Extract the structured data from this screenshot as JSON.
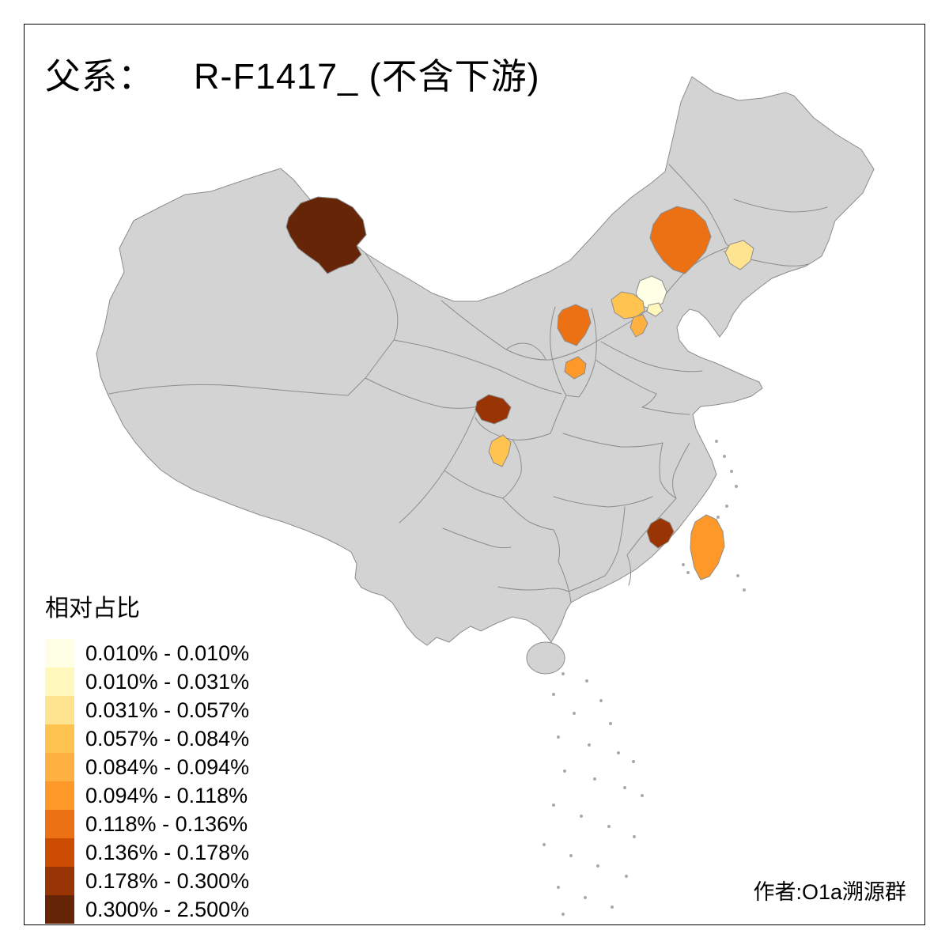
{
  "title": {
    "prefix": "父系：",
    "name": "R-F1417_ (不含下游)"
  },
  "legend": {
    "title": "相对占比",
    "items": [
      {
        "label": "0.010% - 0.010%",
        "color": "#FFFFE5"
      },
      {
        "label": "0.010% - 0.031%",
        "color": "#FFF7BC"
      },
      {
        "label": "0.031% - 0.057%",
        "color": "#FEE391"
      },
      {
        "label": "0.057% - 0.084%",
        "color": "#FEC44F"
      },
      {
        "label": "0.084% - 0.094%",
        "color": "#FEB140"
      },
      {
        "label": "0.094% - 0.118%",
        "color": "#FE9929"
      },
      {
        "label": "0.118% - 0.136%",
        "color": "#EC7014"
      },
      {
        "label": "0.136% - 0.178%",
        "color": "#CC4C02"
      },
      {
        "label": "0.178% - 0.300%",
        "color": "#993404"
      },
      {
        "label": "0.300% - 2.500%",
        "color": "#662506"
      }
    ]
  },
  "credit": "作者:O1a溯源群",
  "map": {
    "background": "#FFFFFF",
    "land_color": "#D3D3D3",
    "border_color": "#8C8C8C",
    "frame_color": "#000000",
    "regions": [
      {
        "id": "map-region-northwest-large",
        "legend_class": 10,
        "color": "#662506"
      },
      {
        "id": "map-region-northeast-blob",
        "legend_class": 7,
        "color": "#EC7014"
      },
      {
        "id": "map-region-west-liaoning",
        "legend_class": 3,
        "color": "#FEE391"
      },
      {
        "id": "map-region-beijing",
        "legend_class": 1,
        "color": "#FFFFE5"
      },
      {
        "id": "map-region-beijing-south",
        "legend_class": 2,
        "color": "#FFF7BC"
      },
      {
        "id": "map-region-northwest-hebei",
        "legend_class": 4,
        "color": "#FEC44F"
      },
      {
        "id": "map-region-tianjin",
        "legend_class": 5,
        "color": "#FEB140"
      },
      {
        "id": "map-region-north-shanxi",
        "legend_class": 7,
        "color": "#EC7014"
      },
      {
        "id": "map-region-central-shanxi",
        "legend_class": 6,
        "color": "#FE9929"
      },
      {
        "id": "map-region-northwest-sichuan",
        "legend_class": 9,
        "color": "#993404"
      },
      {
        "id": "map-region-central-sichuan",
        "legend_class": 4,
        "color": "#FEC44F"
      },
      {
        "id": "map-region-south-fujian-coast",
        "legend_class": 9,
        "color": "#993404"
      },
      {
        "id": "map-region-taiwan",
        "legend_class": 6,
        "color": "#FE9929"
      }
    ]
  }
}
